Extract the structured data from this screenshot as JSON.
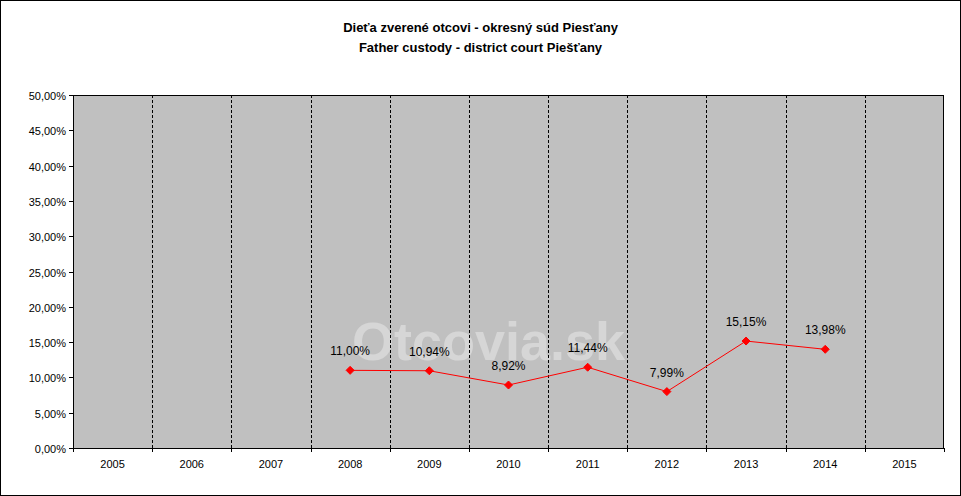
{
  "chart_data": {
    "type": "line",
    "title": "Dieťa zverené otcovi - okresný súd Piesťany",
    "subtitle": "Father custody - district court Piešťany",
    "annotations": [
      "Otcovia.sk"
    ],
    "categories": [
      "2005",
      "2006",
      "2007",
      "2008",
      "2009",
      "2010",
      "2011",
      "2012",
      "2013",
      "2014",
      "2015"
    ],
    "series": [
      {
        "name": "Father custody",
        "color": "#ff0000",
        "marker": "diamond",
        "values": [
          null,
          null,
          null,
          11.0,
          10.94,
          8.92,
          11.44,
          7.99,
          15.15,
          13.98,
          null
        ],
        "value_labels": [
          null,
          null,
          null,
          "11,00%",
          "10,94%",
          "8,92%",
          "11,44%",
          "7,99%",
          "15,15%",
          "13,98%",
          null
        ]
      }
    ],
    "ylim": [
      0,
      50
    ],
    "yticks": [
      {
        "value": 0,
        "label": "0,00%"
      },
      {
        "value": 5,
        "label": "5,00%"
      },
      {
        "value": 10,
        "label": "10,00%"
      },
      {
        "value": 15,
        "label": "15,00%"
      },
      {
        "value": 20,
        "label": "20,00%"
      },
      {
        "value": 25,
        "label": "25,00%"
      },
      {
        "value": 30,
        "label": "30,00%"
      },
      {
        "value": 35,
        "label": "35,00%"
      },
      {
        "value": 40,
        "label": "40,00%"
      },
      {
        "value": 45,
        "label": "45,00%"
      },
      {
        "value": 50,
        "label": "50,00%"
      }
    ],
    "grid": true,
    "data_labels": true
  }
}
